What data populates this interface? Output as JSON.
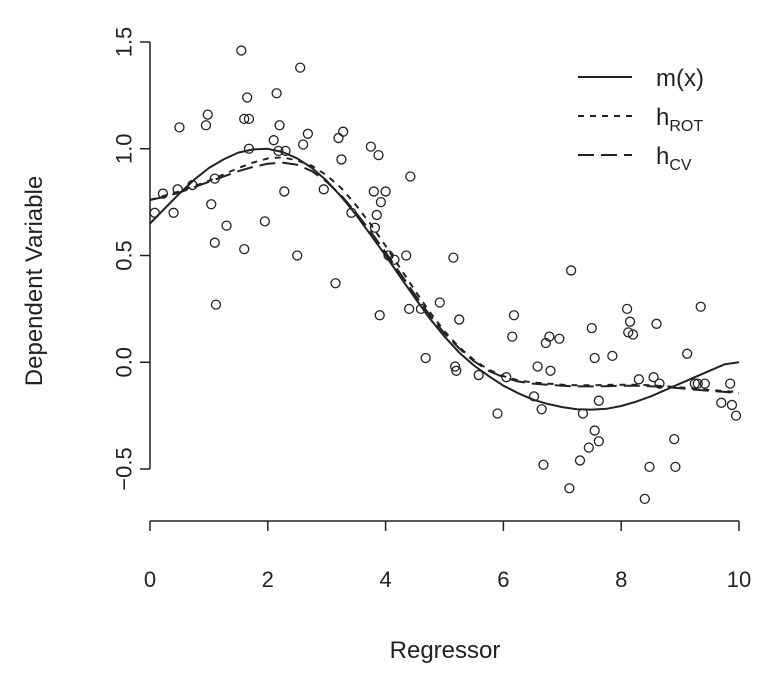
{
  "chart_data": {
    "type": "scatter",
    "title": "",
    "xlabel": "Regressor",
    "ylabel": "Dependent Variable",
    "xlim": [
      0,
      10
    ],
    "ylim": [
      -0.75,
      1.5
    ],
    "x_ticks": [
      0,
      2,
      4,
      6,
      8,
      10
    ],
    "x_tick_labels": [
      "0",
      "2",
      "4",
      "6",
      "8",
      "10"
    ],
    "y_ticks": [
      -0.5,
      0.0,
      0.5,
      1.0,
      1.5
    ],
    "y_tick_labels": [
      "−0.5",
      "0.0",
      "0.5",
      "1.0",
      "1.5"
    ],
    "grid": false,
    "legend_position": "top-right",
    "legend": [
      {
        "label": "m(x)",
        "main": "m(x)",
        "sub": "",
        "style": "solid"
      },
      {
        "label": "h_ROT",
        "main": "h",
        "sub": "ROT",
        "style": "dotted"
      },
      {
        "label": "h_CV",
        "main": "h",
        "sub": "CV",
        "style": "dashed"
      }
    ],
    "points": [
      {
        "x": 0.08,
        "y": 0.7
      },
      {
        "x": 0.22,
        "y": 0.79
      },
      {
        "x": 0.4,
        "y": 0.7
      },
      {
        "x": 0.47,
        "y": 0.81
      },
      {
        "x": 0.5,
        "y": 1.1
      },
      {
        "x": 0.72,
        "y": 0.83
      },
      {
        "x": 0.95,
        "y": 1.11
      },
      {
        "x": 0.98,
        "y": 1.16
      },
      {
        "x": 1.04,
        "y": 0.74
      },
      {
        "x": 1.1,
        "y": 0.56
      },
      {
        "x": 1.1,
        "y": 0.86
      },
      {
        "x": 1.12,
        "y": 0.27
      },
      {
        "x": 1.3,
        "y": 0.64
      },
      {
        "x": 1.55,
        "y": 1.46
      },
      {
        "x": 1.6,
        "y": 1.14
      },
      {
        "x": 1.6,
        "y": 0.53
      },
      {
        "x": 1.65,
        "y": 1.24
      },
      {
        "x": 1.68,
        "y": 1.0
      },
      {
        "x": 1.68,
        "y": 1.14
      },
      {
        "x": 1.95,
        "y": 0.66
      },
      {
        "x": 2.1,
        "y": 1.04
      },
      {
        "x": 2.15,
        "y": 1.26
      },
      {
        "x": 2.2,
        "y": 1.11
      },
      {
        "x": 2.18,
        "y": 0.99
      },
      {
        "x": 2.28,
        "y": 0.8
      },
      {
        "x": 2.3,
        "y": 0.99
      },
      {
        "x": 2.5,
        "y": 0.5
      },
      {
        "x": 2.55,
        "y": 1.38
      },
      {
        "x": 2.6,
        "y": 1.02
      },
      {
        "x": 2.68,
        "y": 1.07
      },
      {
        "x": 2.95,
        "y": 0.81
      },
      {
        "x": 3.15,
        "y": 0.37
      },
      {
        "x": 3.2,
        "y": 1.05
      },
      {
        "x": 3.25,
        "y": 0.95
      },
      {
        "x": 3.28,
        "y": 1.08
      },
      {
        "x": 3.42,
        "y": 0.7
      },
      {
        "x": 3.75,
        "y": 1.01
      },
      {
        "x": 3.8,
        "y": 0.8
      },
      {
        "x": 3.82,
        "y": 0.63
      },
      {
        "x": 3.85,
        "y": 0.69
      },
      {
        "x": 3.88,
        "y": 0.97
      },
      {
        "x": 3.9,
        "y": 0.22
      },
      {
        "x": 3.92,
        "y": 0.75
      },
      {
        "x": 4.0,
        "y": 0.8
      },
      {
        "x": 4.05,
        "y": 0.5
      },
      {
        "x": 4.15,
        "y": 0.48
      },
      {
        "x": 4.35,
        "y": 0.5
      },
      {
        "x": 4.4,
        "y": 0.25
      },
      {
        "x": 4.42,
        "y": 0.87
      },
      {
        "x": 4.6,
        "y": 0.25
      },
      {
        "x": 4.68,
        "y": 0.02
      },
      {
        "x": 4.92,
        "y": 0.28
      },
      {
        "x": 5.15,
        "y": 0.49
      },
      {
        "x": 5.18,
        "y": -0.02
      },
      {
        "x": 5.2,
        "y": -0.04
      },
      {
        "x": 5.25,
        "y": 0.2
      },
      {
        "x": 5.58,
        "y": -0.06
      },
      {
        "x": 5.9,
        "y": -0.24
      },
      {
        "x": 6.05,
        "y": -0.07
      },
      {
        "x": 6.15,
        "y": 0.12
      },
      {
        "x": 6.18,
        "y": 0.22
      },
      {
        "x": 6.52,
        "y": -0.16
      },
      {
        "x": 6.58,
        "y": -0.02
      },
      {
        "x": 6.65,
        "y": -0.22
      },
      {
        "x": 6.68,
        "y": -0.48
      },
      {
        "x": 6.72,
        "y": 0.09
      },
      {
        "x": 6.78,
        "y": 0.12
      },
      {
        "x": 6.8,
        "y": -0.04
      },
      {
        "x": 6.95,
        "y": 0.11
      },
      {
        "x": 7.12,
        "y": -0.59
      },
      {
        "x": 7.15,
        "y": 0.43
      },
      {
        "x": 7.3,
        "y": -0.46
      },
      {
        "x": 7.35,
        "y": -0.24
      },
      {
        "x": 7.45,
        "y": -0.4
      },
      {
        "x": 7.5,
        "y": 0.16
      },
      {
        "x": 7.55,
        "y": -0.32
      },
      {
        "x": 7.55,
        "y": 0.02
      },
      {
        "x": 7.62,
        "y": -0.37
      },
      {
        "x": 7.62,
        "y": -0.18
      },
      {
        "x": 7.85,
        "y": 0.03
      },
      {
        "x": 8.1,
        "y": 0.25
      },
      {
        "x": 8.12,
        "y": 0.14
      },
      {
        "x": 8.15,
        "y": 0.19
      },
      {
        "x": 8.2,
        "y": 0.13
      },
      {
        "x": 8.3,
        "y": -0.08
      },
      {
        "x": 8.4,
        "y": -0.64
      },
      {
        "x": 8.48,
        "y": -0.49
      },
      {
        "x": 8.55,
        "y": -0.07
      },
      {
        "x": 8.6,
        "y": 0.18
      },
      {
        "x": 8.65,
        "y": -0.1
      },
      {
        "x": 8.9,
        "y": -0.36
      },
      {
        "x": 8.92,
        "y": -0.49
      },
      {
        "x": 9.12,
        "y": 0.04
      },
      {
        "x": 9.25,
        "y": -0.1
      },
      {
        "x": 9.3,
        "y": -0.1
      },
      {
        "x": 9.35,
        "y": 0.26
      },
      {
        "x": 9.42,
        "y": -0.1
      },
      {
        "x": 9.7,
        "y": -0.19
      },
      {
        "x": 9.85,
        "y": -0.1
      },
      {
        "x": 9.88,
        "y": -0.2
      },
      {
        "x": 9.95,
        "y": -0.25
      }
    ],
    "series": [
      {
        "name": "m(x)",
        "style": "solid",
        "x": [
          0,
          0.25,
          0.5,
          0.75,
          1.0,
          1.25,
          1.5,
          1.75,
          2.0,
          2.25,
          2.5,
          2.75,
          3.0,
          3.25,
          3.5,
          3.75,
          4.0,
          4.25,
          4.5,
          4.75,
          5.0,
          5.25,
          5.5,
          5.75,
          6.0,
          6.25,
          6.5,
          6.75,
          7.0,
          7.25,
          7.5,
          7.75,
          8.0,
          8.25,
          8.5,
          8.75,
          9.0,
          9.25,
          9.5,
          9.75,
          10.0
        ],
        "y": [
          0.65,
          0.72,
          0.79,
          0.855,
          0.91,
          0.95,
          0.982,
          0.997,
          1.0,
          0.985,
          0.955,
          0.91,
          0.85,
          0.775,
          0.69,
          0.595,
          0.5,
          0.4,
          0.3,
          0.205,
          0.12,
          0.045,
          -0.015,
          -0.065,
          -0.11,
          -0.145,
          -0.175,
          -0.195,
          -0.21,
          -0.22,
          -0.222,
          -0.218,
          -0.205,
          -0.185,
          -0.16,
          -0.13,
          -0.1,
          -0.07,
          -0.04,
          -0.01,
          0.0
        ]
      },
      {
        "name": "h_ROT",
        "style": "dotted",
        "x": [
          0,
          0.25,
          0.5,
          0.75,
          1.0,
          1.25,
          1.5,
          1.75,
          2.0,
          2.25,
          2.5,
          2.75,
          3.0,
          3.25,
          3.5,
          3.75,
          4.0,
          4.25,
          4.5,
          4.75,
          5.0,
          5.25,
          5.5,
          5.75,
          6.0,
          6.25,
          6.5,
          6.75,
          7.0,
          7.25,
          7.5,
          7.75,
          8.0,
          8.25,
          8.5,
          8.75,
          9.0,
          9.25,
          9.5,
          9.75,
          10.0
        ],
        "y": [
          0.76,
          0.78,
          0.8,
          0.825,
          0.85,
          0.88,
          0.91,
          0.935,
          0.955,
          0.96,
          0.945,
          0.92,
          0.875,
          0.815,
          0.735,
          0.645,
          0.545,
          0.44,
          0.335,
          0.235,
          0.145,
          0.07,
          0.01,
          -0.035,
          -0.065,
          -0.085,
          -0.095,
          -0.1,
          -0.105,
          -0.108,
          -0.108,
          -0.106,
          -0.105,
          -0.105,
          -0.108,
          -0.112,
          -0.118,
          -0.124,
          -0.13,
          -0.135,
          -0.14
        ]
      },
      {
        "name": "h_CV",
        "style": "dashed",
        "x": [
          0,
          0.25,
          0.5,
          0.75,
          1.0,
          1.25,
          1.5,
          1.75,
          2.0,
          2.25,
          2.5,
          2.75,
          3.0,
          3.25,
          3.5,
          3.75,
          4.0,
          4.25,
          4.5,
          4.75,
          5.0,
          5.25,
          5.5,
          5.75,
          6.0,
          6.25,
          6.5,
          6.75,
          7.0,
          7.25,
          7.5,
          7.75,
          8.0,
          8.25,
          8.5,
          8.75,
          9.0,
          9.25,
          9.5,
          9.75,
          10.0
        ],
        "y": [
          0.76,
          0.775,
          0.795,
          0.82,
          0.845,
          0.87,
          0.895,
          0.915,
          0.93,
          0.935,
          0.925,
          0.895,
          0.845,
          0.78,
          0.7,
          0.61,
          0.515,
          0.415,
          0.315,
          0.22,
          0.135,
          0.065,
          0.005,
          -0.04,
          -0.07,
          -0.09,
          -0.1,
          -0.105,
          -0.11,
          -0.113,
          -0.113,
          -0.112,
          -0.11,
          -0.11,
          -0.112,
          -0.116,
          -0.122,
          -0.128,
          -0.134,
          -0.139,
          -0.145
        ]
      }
    ]
  }
}
